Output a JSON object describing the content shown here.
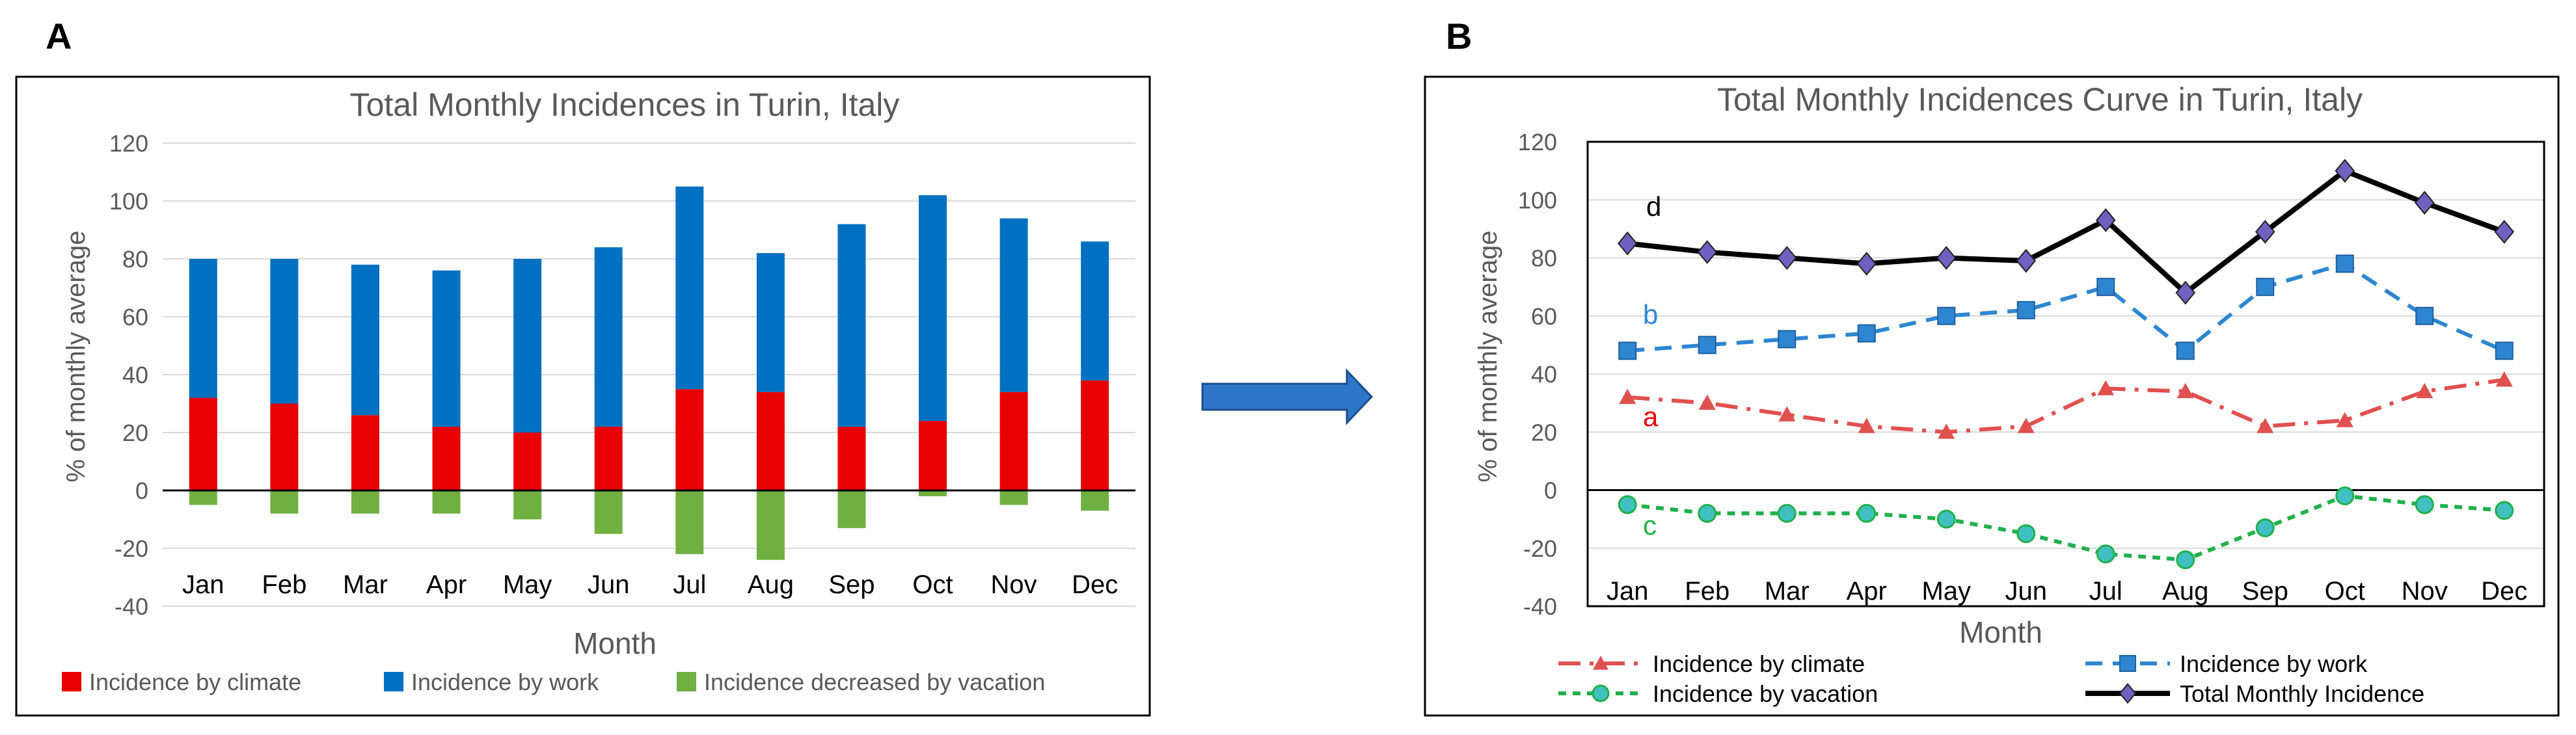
{
  "panels": {
    "a_label": "A",
    "b_label": "B"
  },
  "colors": {
    "climate": "#e60000",
    "work": "#0070c0",
    "vacation": "#70b040",
    "total": "#000000",
    "marker_total": "#7060c0",
    "marker_vacation": "#40c0c0",
    "arrow": "#1f5fb0",
    "grid": "#d9d9d9",
    "axis_text": "#595959"
  },
  "chart_data": [
    {
      "type": "bar",
      "stacked": true,
      "title": "Total Monthly Incidences in Turin, Italy",
      "xlabel": "Month",
      "ylabel": "% of monthly average",
      "ylim": [
        -40,
        120
      ],
      "yticks": [
        -40,
        -20,
        0,
        20,
        40,
        60,
        80,
        100,
        120
      ],
      "grid": true,
      "legend_position": "bottom",
      "categories": [
        "Jan",
        "Feb",
        "Mar",
        "Apr",
        "May",
        "Jun",
        "Jul",
        "Aug",
        "Sep",
        "Oct",
        "Nov",
        "Dec"
      ],
      "series": [
        {
          "name": "Incidence by climate",
          "values": [
            32,
            30,
            26,
            22,
            20,
            22,
            35,
            34,
            22,
            24,
            34,
            38
          ]
        },
        {
          "name": "Incidence by work",
          "values": [
            48,
            50,
            52,
            54,
            60,
            62,
            70,
            48,
            70,
            78,
            60,
            48
          ]
        },
        {
          "name": "Incidence decreased by vacation",
          "values": [
            -5,
            -8,
            -8,
            -8,
            -10,
            -15,
            -22,
            -24,
            -13,
            -2,
            -5,
            -7
          ]
        }
      ]
    },
    {
      "type": "line",
      "title": "Total Monthly Incidences Curve in Turin, Italy",
      "xlabel": "Month",
      "ylabel": "% of monthly average",
      "ylim": [
        -40,
        120
      ],
      "yticks": [
        -40,
        -20,
        0,
        20,
        40,
        60,
        80,
        100,
        120
      ],
      "grid": true,
      "legend_position": "bottom",
      "categories": [
        "Jan",
        "Feb",
        "Mar",
        "Apr",
        "May",
        "Jun",
        "Jul",
        "Aug",
        "Sep",
        "Oct",
        "Nov",
        "Dec"
      ],
      "series": [
        {
          "name": "Incidence by climate",
          "tag": "a",
          "values": [
            32,
            30,
            26,
            22,
            20,
            22,
            35,
            34,
            22,
            24,
            34,
            38
          ]
        },
        {
          "name": "Incidence by work",
          "tag": "b",
          "values": [
            48,
            50,
            52,
            54,
            60,
            62,
            70,
            48,
            70,
            78,
            60,
            48
          ]
        },
        {
          "name": "Incidence by vacation",
          "tag": "c",
          "values": [
            -5,
            -8,
            -8,
            -8,
            -10,
            -15,
            -22,
            -24,
            -13,
            -2,
            -5,
            -7
          ]
        },
        {
          "name": "Total Monthly Incidence",
          "tag": "d",
          "values": [
            85,
            82,
            80,
            78,
            80,
            79,
            93,
            68,
            89,
            110,
            99,
            89
          ]
        }
      ]
    }
  ]
}
